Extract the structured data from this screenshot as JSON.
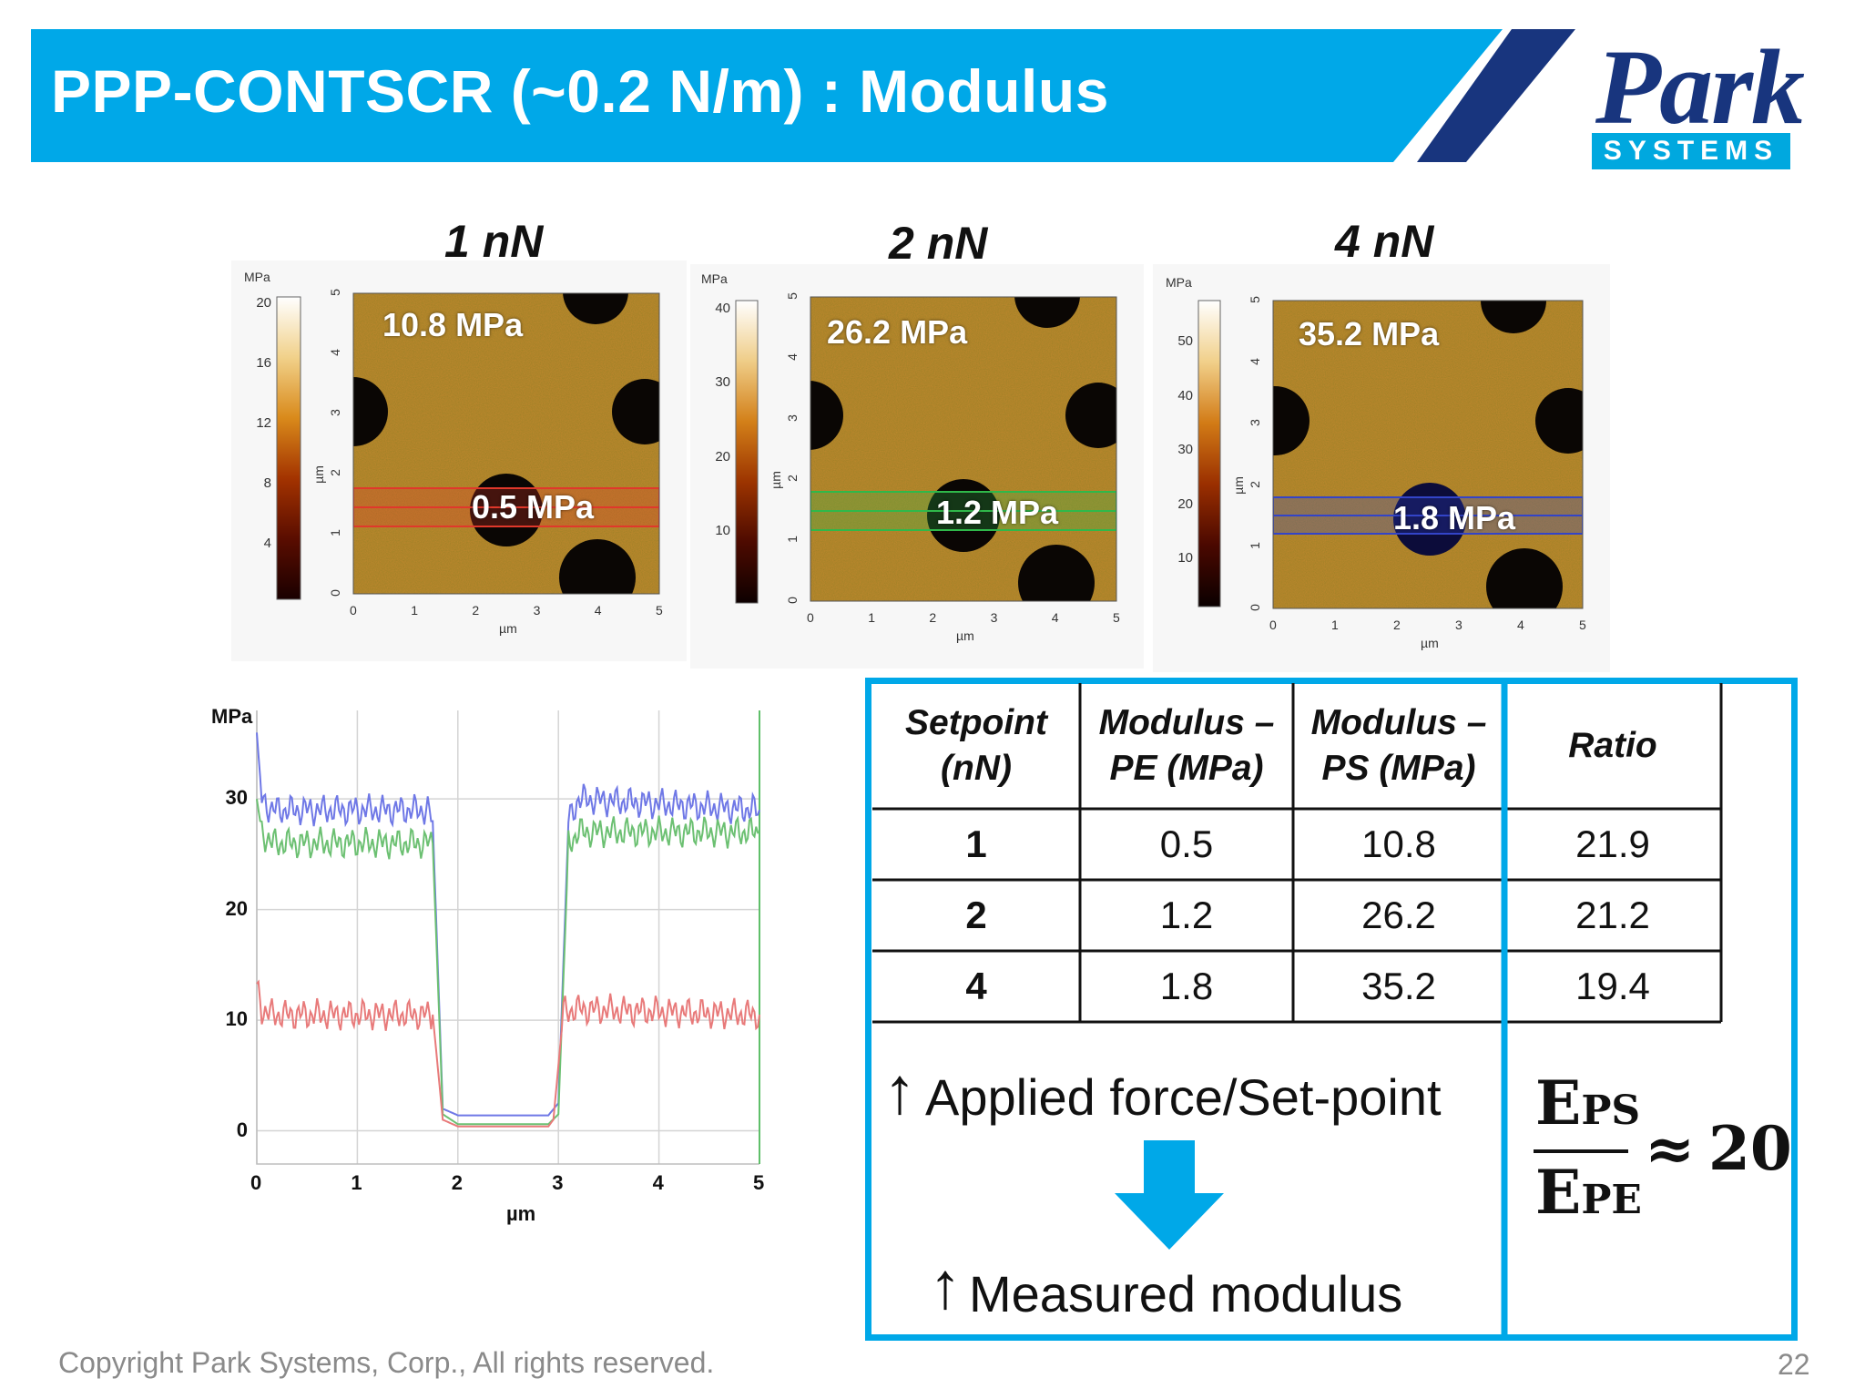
{
  "header": {
    "title": "PPP-CONTSCR (~0.2 N/m) : Modulus",
    "logo_text": "Park",
    "logo_sub": "SYSTEMS",
    "colors": {
      "bar": "#00a8e8",
      "accent": "#18357e"
    }
  },
  "panels": [
    {
      "label": "1 nN",
      "cb_unit": "MPa",
      "cb_ticks": [
        "20",
        "16",
        "12",
        "8",
        "4"
      ],
      "y_ticks": [
        "5",
        "4",
        "3",
        "2",
        "1",
        "0"
      ],
      "x_ticks": [
        "0",
        "1",
        "2",
        "3",
        "4",
        "5"
      ],
      "axis_label": "µm",
      "top_label": "10.8 MPa",
      "bottom_label": "0.5 MPa",
      "band_color": "#e0382b"
    },
    {
      "label": "2 nN",
      "cb_unit": "MPa",
      "cb_ticks": [
        "40",
        "30",
        "20",
        "10"
      ],
      "y_ticks": [
        "5",
        "4",
        "3",
        "2",
        "1",
        "0"
      ],
      "x_ticks": [
        "0",
        "1",
        "2",
        "3",
        "4",
        "5"
      ],
      "axis_label": "µm",
      "top_label": "26.2 MPa",
      "bottom_label": "1.2 MPa",
      "band_color": "#2fb84a"
    },
    {
      "label": "4 nN",
      "cb_unit": "MPa",
      "cb_ticks": [
        "50",
        "40",
        "30",
        "20",
        "10"
      ],
      "y_ticks": [
        "5",
        "4",
        "3",
        "2",
        "1",
        "0"
      ],
      "x_ticks": [
        "0",
        "1",
        "2",
        "3",
        "4",
        "5"
      ],
      "axis_label": "µm",
      "top_label": "35.2 MPa",
      "bottom_label": "1.8 MPa",
      "band_color": "#3344c8"
    }
  ],
  "chart_data": {
    "type": "line",
    "title": "",
    "xlabel": "µm",
    "ylabel": "MPa",
    "xlim": [
      0,
      5
    ],
    "ylim": [
      -3,
      38
    ],
    "x_ticks": [
      "0",
      "1",
      "2",
      "3",
      "4",
      "5"
    ],
    "y_ticks": [
      "30",
      "20",
      "10",
      "0"
    ],
    "grid": true,
    "series": [
      {
        "color": "#6f78e6",
        "x": [
          0,
          0.05,
          0.15,
          1.7,
          1.75,
          1.85,
          2.0,
          2.9,
          3.0,
          3.1,
          3.2,
          5.0
        ],
        "y": [
          36,
          30,
          29,
          29,
          28,
          2,
          1.4,
          1.4,
          2.5,
          28,
          30,
          29
        ]
      },
      {
        "color": "#6cc072",
        "x": [
          0,
          0.05,
          0.15,
          1.7,
          1.75,
          1.85,
          2.0,
          2.9,
          3.0,
          3.1,
          3.2,
          5.0
        ],
        "y": [
          30,
          27,
          26,
          26,
          26,
          1.5,
          0.6,
          0.6,
          1.5,
          26,
          27,
          27
        ]
      },
      {
        "color": "#e87a7a",
        "x": [
          0,
          0.05,
          0.15,
          1.7,
          1.75,
          1.85,
          2.0,
          2.9,
          2.95,
          3.05,
          3.2,
          5.0
        ],
        "y": [
          13,
          11,
          10.5,
          10.5,
          10.5,
          1,
          0.4,
          0.4,
          1,
          10.8,
          11,
          10.5
        ]
      }
    ]
  },
  "table": {
    "headers": [
      "Setpoint (nN)",
      "Modulus – PE (MPa)",
      "Modulus – PS (MPa)",
      "Ratio"
    ],
    "header_lines": [
      [
        "Setpoint",
        "(nN)"
      ],
      [
        "Modulus –",
        "PE (MPa)"
      ],
      [
        "Modulus –",
        "PS (MPa)"
      ],
      [
        "Ratio"
      ]
    ],
    "rows": [
      [
        "1",
        "0.5",
        "10.8",
        "21.9"
      ],
      [
        "2",
        "1.2",
        "26.2",
        "21.2"
      ],
      [
        "4",
        "1.8",
        "35.2",
        "19.4"
      ]
    ],
    "note_top": "Applied force/Set-point",
    "note_bottom": "Measured modulus",
    "up_arrow": "↑",
    "equation": {
      "num_main": "E",
      "num_sub": "PS",
      "den_main": "E",
      "den_sub": "PE",
      "approx": "≈",
      "value": "20"
    }
  },
  "footer": {
    "copyright": "Copyright Park Systems, Corp., All rights reserved.",
    "page": "22"
  }
}
